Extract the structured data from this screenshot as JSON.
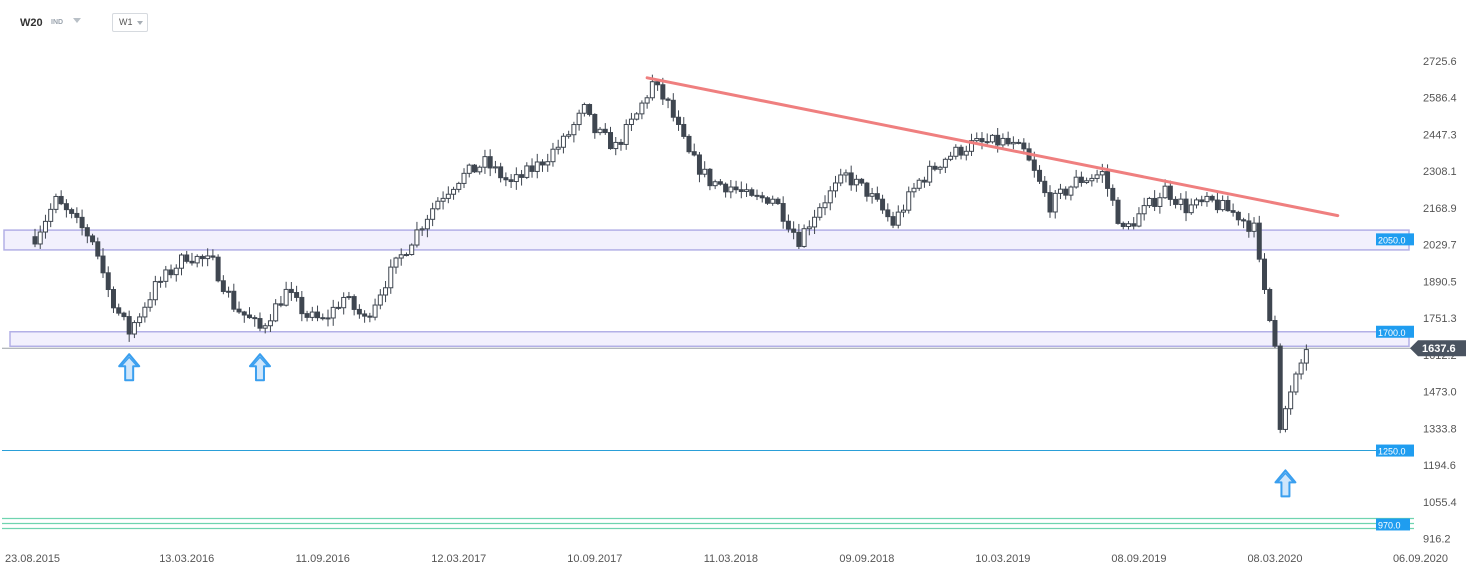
{
  "toolbar": {
    "symbol": "W20",
    "symbol_type": "IND",
    "timeframe": "W1"
  },
  "colors": {
    "candle": "#3f4650",
    "trendline": "#ef7f7f",
    "support_band_fill": "#f2f0fd",
    "support_band_stroke": "#b3b0e6",
    "level_line": "#2a9fd8",
    "level_tag": "#1f9df0",
    "bottom_lines": "#6fd4b0",
    "arrow": "#3a9fef",
    "price_tag": "#4a5360"
  },
  "chart_data": {
    "type": "candlestick",
    "title": "",
    "xlabel": "",
    "ylabel": "",
    "ylim": [
      896,
      2790
    ],
    "x_range": [
      "2015-08-23",
      "2020-09-06"
    ],
    "y_ticks": [
      "2725.6",
      "2586.4",
      "2447.3",
      "2308.1",
      "2168.9",
      "2029.7",
      "1890.5",
      "1751.3",
      "1612.2",
      "1473.0",
      "1333.8",
      "1194.6",
      "1055.4",
      "916.2"
    ],
    "x_ticks": [
      {
        "date": "2015-08-23",
        "label": "23.08.2015"
      },
      {
        "date": "2016-03-13",
        "label": "13.03.2016"
      },
      {
        "date": "2016-09-11",
        "label": "11.09.2016"
      },
      {
        "date": "2017-03-12",
        "label": "12.03.2017"
      },
      {
        "date": "2017-09-10",
        "label": "10.09.2017"
      },
      {
        "date": "2018-03-11",
        "label": "11.03.2018"
      },
      {
        "date": "2018-09-09",
        "label": "09.09.2018"
      },
      {
        "date": "2019-03-10",
        "label": "10.03.2019"
      },
      {
        "date": "2019-09-08",
        "label": "08.09.2019"
      },
      {
        "date": "2020-03-08",
        "label": "08.03.2020"
      },
      {
        "date": "2020-09-06",
        "label": "06.09.2020"
      }
    ],
    "current_price": "1637.6",
    "support_zones": [
      {
        "low": 2010,
        "high": 2085,
        "label": "2050.0"
      },
      {
        "low": 1645,
        "high": 1700,
        "label": "1700.0"
      }
    ],
    "levels": [
      {
        "value": 1250,
        "label": "1250.0"
      },
      {
        "value": 970,
        "label": "970.0"
      }
    ],
    "trendline": [
      {
        "date": "2017-11-19",
        "value": 2662
      },
      {
        "date": "2020-05-31",
        "value": 2140
      }
    ],
    "arrow_markers": [
      {
        "date": "2015-12-27",
        "value": 1615
      },
      {
        "date": "2016-06-19",
        "value": 1615
      },
      {
        "date": "2020-03-22",
        "value": 1175
      }
    ],
    "series": [
      {
        "close_path": [
          {
            "date": "2015-08-23",
            "value": 2060
          },
          {
            "date": "2015-09-20",
            "value": 2195
          },
          {
            "date": "2015-10-18",
            "value": 2110
          },
          {
            "date": "2015-11-08",
            "value": 2050
          },
          {
            "date": "2015-11-29",
            "value": 1860
          },
          {
            "date": "2015-12-13",
            "value": 1770
          },
          {
            "date": "2015-12-27",
            "value": 1700
          },
          {
            "date": "2016-01-31",
            "value": 1870
          },
          {
            "date": "2016-03-13",
            "value": 1990
          },
          {
            "date": "2016-04-17",
            "value": 1960
          },
          {
            "date": "2016-05-15",
            "value": 1800
          },
          {
            "date": "2016-06-19",
            "value": 1710
          },
          {
            "date": "2016-07-24",
            "value": 1850
          },
          {
            "date": "2016-08-21",
            "value": 1760
          },
          {
            "date": "2016-09-11",
            "value": 1740
          },
          {
            "date": "2016-10-09",
            "value": 1830
          },
          {
            "date": "2016-11-06",
            "value": 1745
          },
          {
            "date": "2016-12-04",
            "value": 1890
          },
          {
            "date": "2017-01-08",
            "value": 2050
          },
          {
            "date": "2017-02-12",
            "value": 2200
          },
          {
            "date": "2017-03-12",
            "value": 2280
          },
          {
            "date": "2017-04-16",
            "value": 2340
          },
          {
            "date": "2017-05-21",
            "value": 2260
          },
          {
            "date": "2017-06-25",
            "value": 2330
          },
          {
            "date": "2017-07-30",
            "value": 2420
          },
          {
            "date": "2017-08-27",
            "value": 2540
          },
          {
            "date": "2017-09-10",
            "value": 2460
          },
          {
            "date": "2017-10-08",
            "value": 2400
          },
          {
            "date": "2017-11-05",
            "value": 2520
          },
          {
            "date": "2017-11-26",
            "value": 2640
          },
          {
            "date": "2017-12-17",
            "value": 2560
          },
          {
            "date": "2018-01-14",
            "value": 2370
          },
          {
            "date": "2018-02-11",
            "value": 2270
          },
          {
            "date": "2018-03-11",
            "value": 2250
          },
          {
            "date": "2018-04-08",
            "value": 2200
          },
          {
            "date": "2018-05-06",
            "value": 2210
          },
          {
            "date": "2018-06-10",
            "value": 2050
          },
          {
            "date": "2018-07-08",
            "value": 2180
          },
          {
            "date": "2018-08-12",
            "value": 2290
          },
          {
            "date": "2018-09-09",
            "value": 2230
          },
          {
            "date": "2018-10-14",
            "value": 2110
          },
          {
            "date": "2018-11-18",
            "value": 2270
          },
          {
            "date": "2018-12-23",
            "value": 2360
          },
          {
            "date": "2019-01-27",
            "value": 2410
          },
          {
            "date": "2019-03-10",
            "value": 2420
          },
          {
            "date": "2019-04-07",
            "value": 2380
          },
          {
            "date": "2019-05-12",
            "value": 2180
          },
          {
            "date": "2019-06-16",
            "value": 2270
          },
          {
            "date": "2019-07-21",
            "value": 2300
          },
          {
            "date": "2019-08-18",
            "value": 2080
          },
          {
            "date": "2019-09-08",
            "value": 2140
          },
          {
            "date": "2019-10-13",
            "value": 2240
          },
          {
            "date": "2019-11-10",
            "value": 2170
          },
          {
            "date": "2019-12-15",
            "value": 2190
          },
          {
            "date": "2020-01-19",
            "value": 2140
          },
          {
            "date": "2020-02-09",
            "value": 2090
          },
          {
            "date": "2020-02-23",
            "value": 1860
          },
          {
            "date": "2020-03-01",
            "value": 1770
          },
          {
            "date": "2020-03-08",
            "value": 1670
          },
          {
            "date": "2020-03-15",
            "value": 1330
          },
          {
            "date": "2020-03-22",
            "value": 1400
          },
          {
            "date": "2020-04-05",
            "value": 1520
          },
          {
            "date": "2020-04-19",
            "value": 1637.6
          }
        ]
      }
    ]
  }
}
